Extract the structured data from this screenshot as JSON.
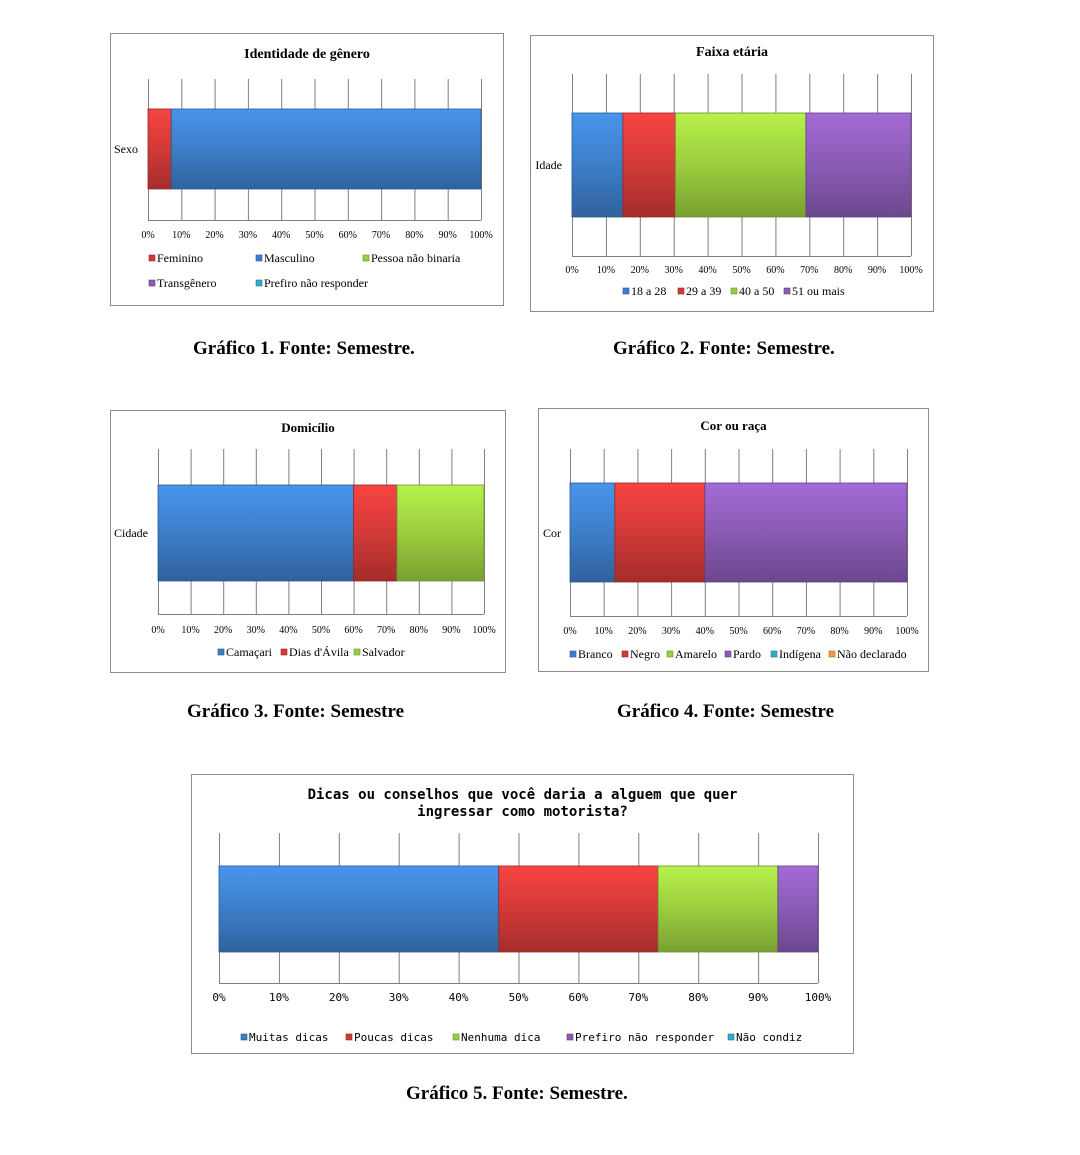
{
  "colors": {
    "blue": "#3d7ec9",
    "red": "#d23a38",
    "green": "#9bcd3f",
    "purple": "#8a5bb5",
    "cyan": "#37a9cc",
    "orange": "#f29b3a",
    "grid": "#7f7f7f",
    "border": "#8c8c8c"
  },
  "captions": [
    "Gráfico 1. Fonte: Semestre.",
    "Gráfico 2. Fonte: Semestre.",
    "Gráfico 3. Fonte: Semestre",
    "Gráfico 4. Fonte: Semestre",
    "Gráfico 5. Fonte: Semestre."
  ],
  "chart_data": [
    {
      "type": "bar",
      "stacked": "100%",
      "orientation": "horizontal",
      "title": "Identidade de gênero",
      "categories": [
        "Sexo"
      ],
      "xlim": [
        0,
        100
      ],
      "ticks": [
        "0%",
        "10%",
        "20%",
        "30%",
        "40%",
        "50%",
        "60%",
        "70%",
        "80%",
        "90%",
        "100%"
      ],
      "grid": true,
      "legend_position": "bottom",
      "series": [
        {
          "name": "Feminino",
          "values": [
            7
          ],
          "color": "red"
        },
        {
          "name": "Masculino",
          "values": [
            93
          ],
          "color": "blue"
        },
        {
          "name": "Pessoa não binaria",
          "values": [
            0
          ],
          "color": "green"
        },
        {
          "name": "Transgênero",
          "values": [
            0
          ],
          "color": "purple"
        },
        {
          "name": "Prefiro não responder",
          "values": [
            0
          ],
          "color": "cyan"
        }
      ]
    },
    {
      "type": "bar",
      "stacked": "100%",
      "orientation": "horizontal",
      "title": "Faixa etária",
      "categories": [
        "Idade"
      ],
      "xlim": [
        0,
        100
      ],
      "ticks": [
        "0%",
        "10%",
        "20%",
        "30%",
        "40%",
        "50%",
        "60%",
        "70%",
        "80%",
        "90%",
        "100%"
      ],
      "grid": true,
      "legend_position": "bottom",
      "series": [
        {
          "name": "18 a 28",
          "values": [
            15
          ],
          "color": "blue"
        },
        {
          "name": "29 a 39",
          "values": [
            15.5
          ],
          "color": "red"
        },
        {
          "name": "40 a 50",
          "values": [
            38.5
          ],
          "color": "green"
        },
        {
          "name": "51 ou mais",
          "values": [
            31
          ],
          "color": "purple"
        }
      ]
    },
    {
      "type": "bar",
      "stacked": "100%",
      "orientation": "horizontal",
      "title": "Domicílio",
      "categories": [
        "Cidade"
      ],
      "xlim": [
        0,
        100
      ],
      "ticks": [
        "0%",
        "10%",
        "20%",
        "30%",
        "40%",
        "50%",
        "60%",
        "70%",
        "80%",
        "90%",
        "100%"
      ],
      "grid": true,
      "legend_position": "bottom",
      "series": [
        {
          "name": "Camaçari",
          "values": [
            60
          ],
          "color": "blue"
        },
        {
          "name": "Dias d'Ávila",
          "values": [
            13.3
          ],
          "color": "red"
        },
        {
          "name": "Salvador",
          "values": [
            26.7
          ],
          "color": "green"
        }
      ]
    },
    {
      "type": "bar",
      "stacked": "100%",
      "orientation": "horizontal",
      "title": "Cor ou raça",
      "categories": [
        "Cor"
      ],
      "xlim": [
        0,
        100
      ],
      "ticks": [
        "0%",
        "10%",
        "20%",
        "30%",
        "40%",
        "50%",
        "60%",
        "70%",
        "80%",
        "90%",
        "100%"
      ],
      "grid": true,
      "legend_position": "bottom",
      "series": [
        {
          "name": "Branco",
          "values": [
            13.3
          ],
          "color": "blue"
        },
        {
          "name": "Negro",
          "values": [
            26.7
          ],
          "color": "red"
        },
        {
          "name": "Amarelo",
          "values": [
            0
          ],
          "color": "green"
        },
        {
          "name": "Pardo",
          "values": [
            60
          ],
          "color": "purple"
        },
        {
          "name": "Indígena",
          "values": [
            0
          ],
          "color": "cyan"
        },
        {
          "name": "Não declarado",
          "values": [
            0
          ],
          "color": "orange"
        }
      ]
    },
    {
      "type": "bar",
      "stacked": "100%",
      "orientation": "horizontal",
      "title": "Dicas ou conselhos que você daria a alguem que quer ingressar como motorista?",
      "title_lines": [
        "Dicas ou conselhos que você daria a alguem que quer",
        "ingressar como motorista?"
      ],
      "categories": [
        ""
      ],
      "xlim": [
        0,
        100
      ],
      "ticks": [
        "0%",
        "10%",
        "20%",
        "30%",
        "40%",
        "50%",
        "60%",
        "70%",
        "80%",
        "90%",
        "100%"
      ],
      "grid": true,
      "legend_position": "bottom",
      "series": [
        {
          "name": "Muitas dicas",
          "values": [
            46.7
          ],
          "color": "blue"
        },
        {
          "name": "Poucas dicas",
          "values": [
            26.6
          ],
          "color": "red"
        },
        {
          "name": "Nenhuma dica",
          "values": [
            20
          ],
          "color": "green"
        },
        {
          "name": "Prefiro não responder",
          "values": [
            6.7
          ],
          "color": "purple"
        },
        {
          "name": "Não condiz",
          "values": [
            0
          ],
          "color": "cyan"
        }
      ]
    }
  ]
}
